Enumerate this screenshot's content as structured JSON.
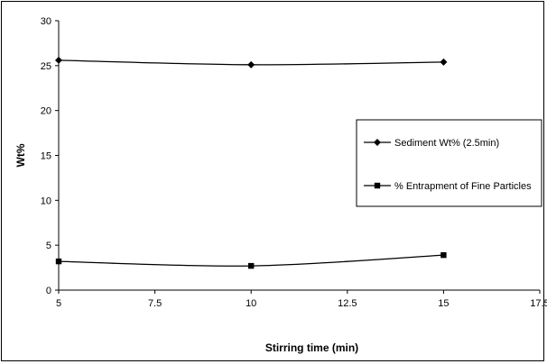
{
  "chart_data": {
    "type": "line",
    "xlabel": "Stirring time (min)",
    "ylabel": "Wt%",
    "xlim": [
      5,
      17.5
    ],
    "ylim": [
      0,
      30
    ],
    "xticks": [
      "5",
      "7.5",
      "10",
      "12.5",
      "15",
      "17.5"
    ],
    "yticks": [
      "0",
      "5",
      "10",
      "15",
      "20",
      "25",
      "30"
    ],
    "grid": false,
    "legend_position": "right",
    "series": [
      {
        "name": "Sediment Wt% (2.5min)",
        "marker": "diamond",
        "color": "#000000",
        "x": [
          5,
          10,
          15
        ],
        "y": [
          25.6,
          25.1,
          25.4
        ]
      },
      {
        "name": "% Entrapment of Fine Particles",
        "marker": "square",
        "color": "#000000",
        "x": [
          5,
          10,
          15
        ],
        "y": [
          3.2,
          2.7,
          3.9
        ]
      }
    ]
  }
}
